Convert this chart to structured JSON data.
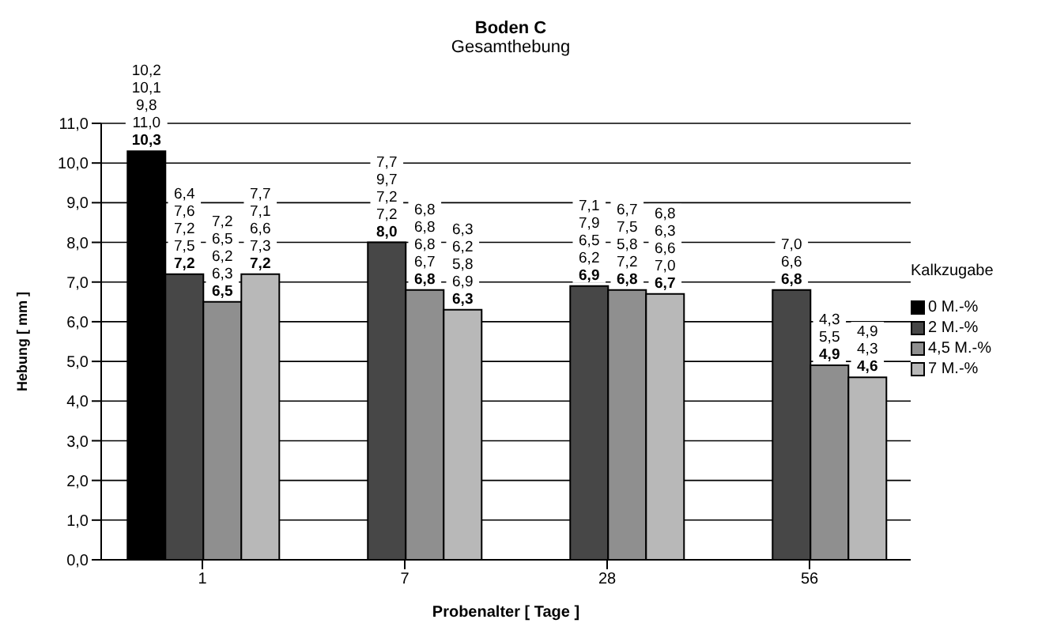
{
  "chart_data": {
    "type": "bar",
    "title": "Boden C",
    "subtitle": "Gesamthebung",
    "xlabel": "Probenalter [ Tage ]",
    "ylabel": "Hebung [ mm ]",
    "legend_title": "Kalkzugabe",
    "categories": [
      "1",
      "7",
      "28",
      "56"
    ],
    "series": [
      {
        "name": "0 M.-%",
        "color": "#000000",
        "values": [
          10.3,
          null,
          null,
          null
        ],
        "value_labels": [
          "10,2\n10,1\n9,8\n11,0\n10,3",
          null,
          null,
          null
        ]
      },
      {
        "name": "2 M.-%",
        "color": "#474747",
        "values": [
          7.2,
          8.0,
          6.9,
          6.8
        ],
        "value_labels": [
          "6,4\n7,6\n7,2\n7,5\n7,2",
          "7,7\n9,7\n7,2\n7,2\n8,0",
          "7,1\n7,9\n6,5\n6,2\n6,9",
          "7,0\n6,6\n6,8"
        ]
      },
      {
        "name": "4,5 M.-%",
        "color": "#8f8f8f",
        "values": [
          6.5,
          6.8,
          6.8,
          4.9
        ],
        "value_labels": [
          "7,2\n6,5\n6,2\n6,3\n6,5",
          "6,8\n6,8\n6,8\n6,7\n6,8",
          "6,7\n7,5\n5,8\n7,2\n6,8",
          "4,3\n5,5\n4,9"
        ]
      },
      {
        "name": "7 M.-%",
        "color": "#b8b8b8",
        "values": [
          7.2,
          6.3,
          6.7,
          4.6
        ],
        "value_labels": [
          "7,7\n7,1\n6,6\n7,3\n7,2",
          "6,3\n6,2\n5,8\n6,9\n6,3",
          "6,8\n6,3\n6,6\n7,0\n6,7",
          "4,9\n4,3\n4,6"
        ]
      }
    ],
    "ylim": [
      0,
      11
    ],
    "yticks": [
      {
        "value": 0,
        "label": "0,0"
      },
      {
        "value": 1,
        "label": "1,0"
      },
      {
        "value": 2,
        "label": "2,0"
      },
      {
        "value": 3,
        "label": "3,0"
      },
      {
        "value": 4,
        "label": "4,0"
      },
      {
        "value": 5,
        "label": "5,0"
      },
      {
        "value": 6,
        "label": "6,0"
      },
      {
        "value": 7,
        "label": "7,0"
      },
      {
        "value": 8,
        "label": "8,0"
      },
      {
        "value": 9,
        "label": "9,0"
      },
      {
        "value": 10,
        "label": "10,0"
      },
      {
        "value": 11,
        "label": "11,0"
      }
    ],
    "grid": "y",
    "legend": "right"
  }
}
